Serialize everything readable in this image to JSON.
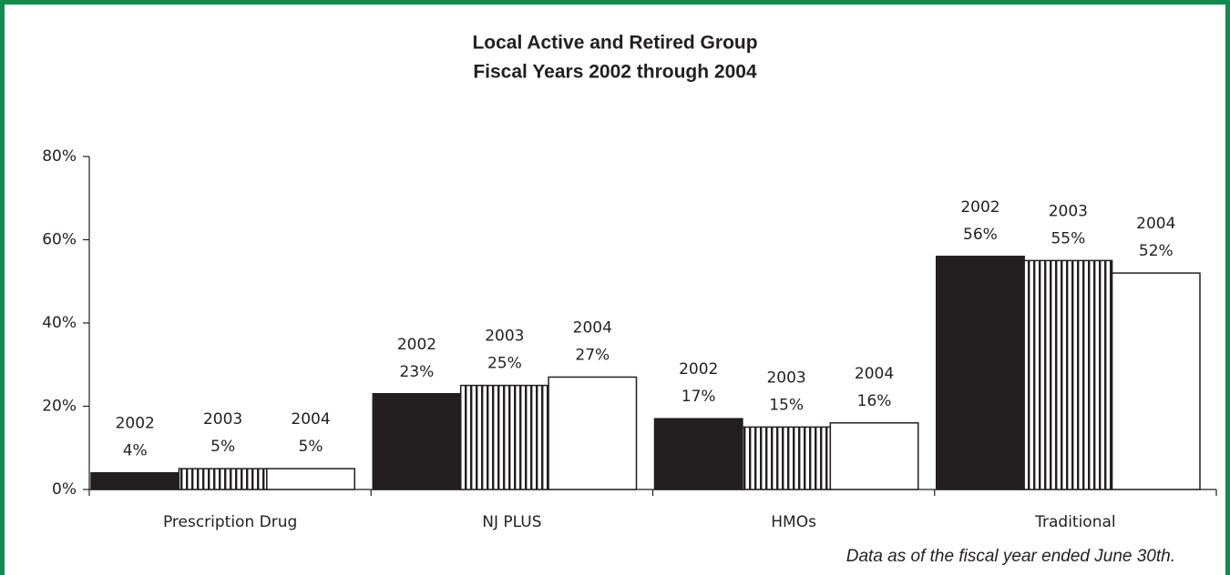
{
  "chart_data": {
    "type": "bar",
    "title": "Local Active and Retired Group",
    "subtitle": "Fiscal Years 2002 through 2004",
    "categories": [
      "Prescription Drug",
      "NJ PLUS",
      "HMOs",
      "Traditional"
    ],
    "series": [
      {
        "name": "2002",
        "color": "#231f20",
        "values": [
          4,
          23,
          17,
          56
        ],
        "value_labels": [
          "4%",
          "23%",
          "17%",
          "56%"
        ]
      },
      {
        "name": "2003",
        "color": "#ffffff",
        "pattern": "vertical-stripes",
        "values": [
          5,
          25,
          15,
          55
        ],
        "value_labels": [
          "5%",
          "25%",
          "15%",
          "55%"
        ]
      },
      {
        "name": "2004",
        "color": "#ffffff",
        "values": [
          5,
          27,
          16,
          52
        ],
        "value_labels": [
          "5%",
          "27%",
          "16%",
          "52%"
        ]
      }
    ],
    "ylim": [
      0,
      80
    ],
    "yticks": [
      {
        "value": 0,
        "label": "0%"
      },
      {
        "value": 20,
        "label": "20%"
      },
      {
        "value": 40,
        "label": "40%"
      },
      {
        "value": 60,
        "label": "60%"
      },
      {
        "value": 80,
        "label": "80%"
      }
    ],
    "annotation": "Data as of the fiscal year ended June 30th."
  }
}
